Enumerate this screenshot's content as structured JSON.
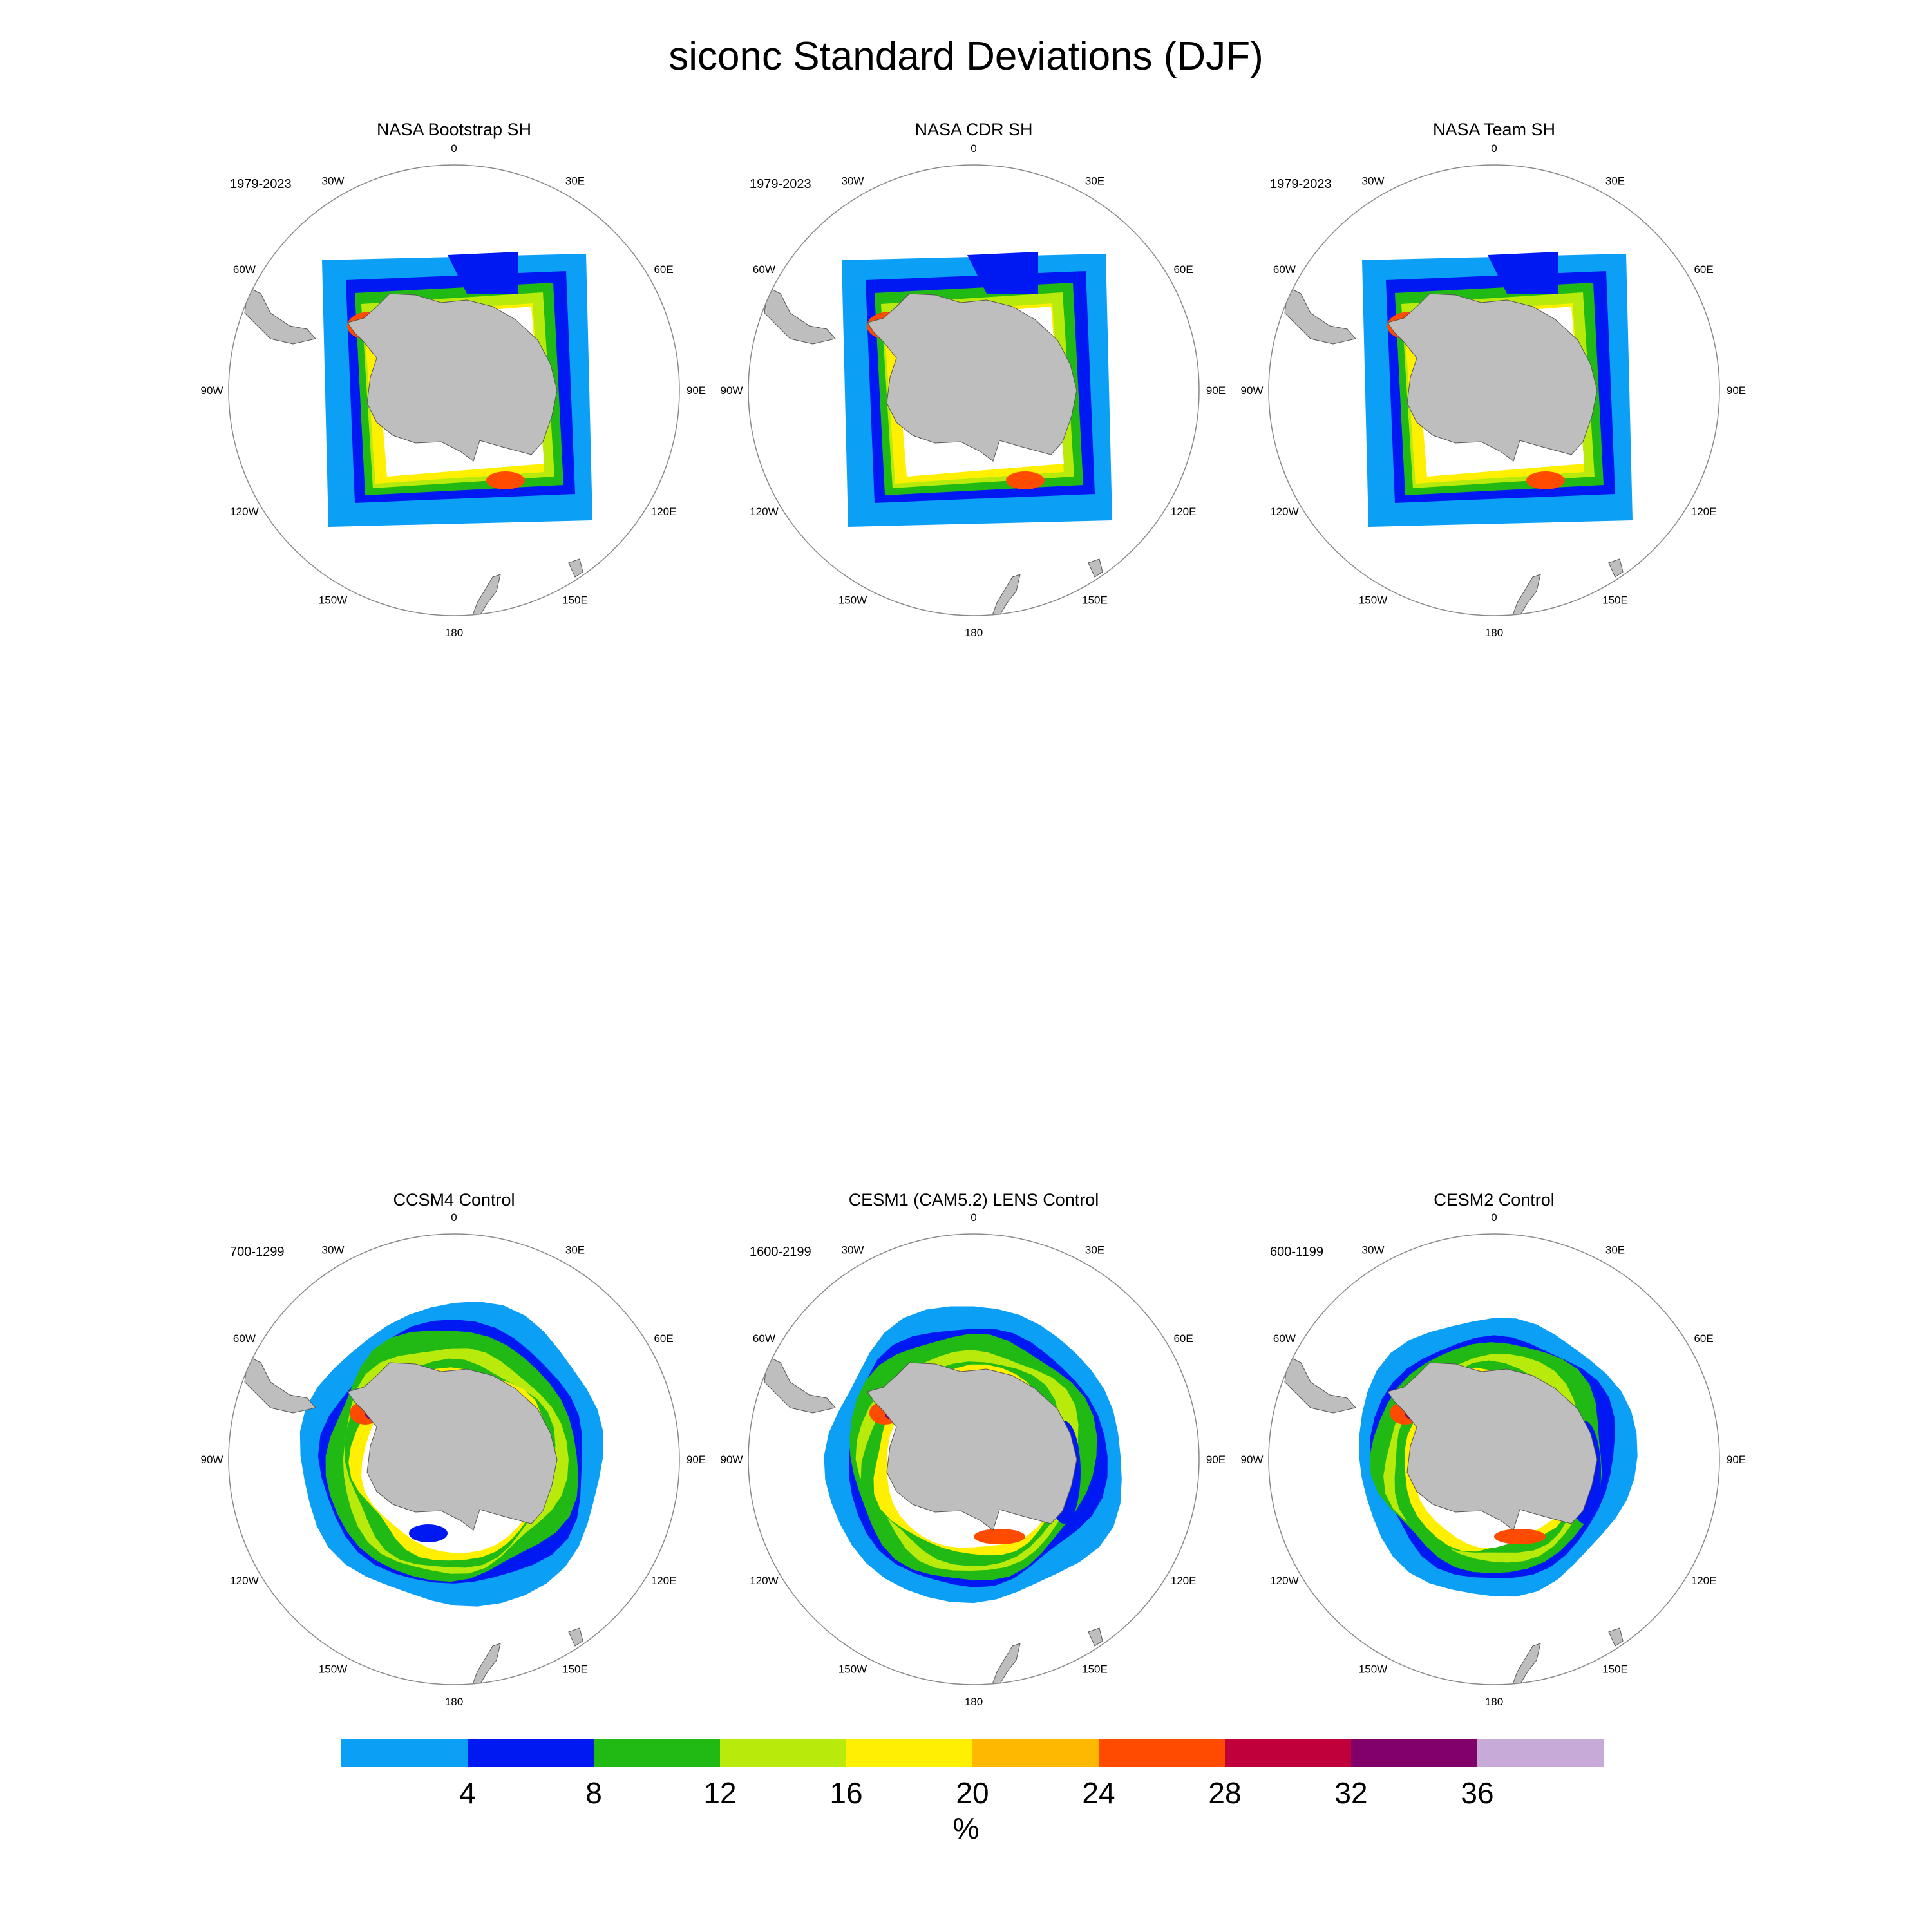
{
  "title": "siconc Standard Deviations (DJF)",
  "panels": [
    {
      "title": "NASA Bootstrap SH",
      "period": "1979-2023",
      "pattern": "obs"
    },
    {
      "title": "NASA CDR SH",
      "period": "1979-2023",
      "pattern": "obs"
    },
    {
      "title": "NASA Team SH",
      "period": "1979-2023",
      "pattern": "obs"
    },
    {
      "title": "CCSM4 Control",
      "period": "700-1299",
      "pattern": "model"
    },
    {
      "title": "CESM1 (CAM5.2) LENS Control",
      "period": "1600-2199",
      "pattern": "model"
    },
    {
      "title": "CESM2 Control",
      "period": "600-1199",
      "pattern": "model"
    }
  ],
  "longitude_labels": [
    "0",
    "30E",
    "60E",
    "90E",
    "120E",
    "150E",
    "180",
    "150W",
    "120W",
    "90W",
    "60W",
    "30W"
  ],
  "colorbar": {
    "units": "%",
    "ticks": [
      "4",
      "8",
      "12",
      "16",
      "20",
      "24",
      "28",
      "32",
      "36"
    ],
    "colors": [
      "#0b9ff5",
      "#0019f2",
      "#21ba14",
      "#b8ea0b",
      "#ffef00",
      "#ffb800",
      "#ff4b00",
      "#c0003a",
      "#82006a",
      "#c8aad8"
    ]
  },
  "land_color": "#bebebe"
}
